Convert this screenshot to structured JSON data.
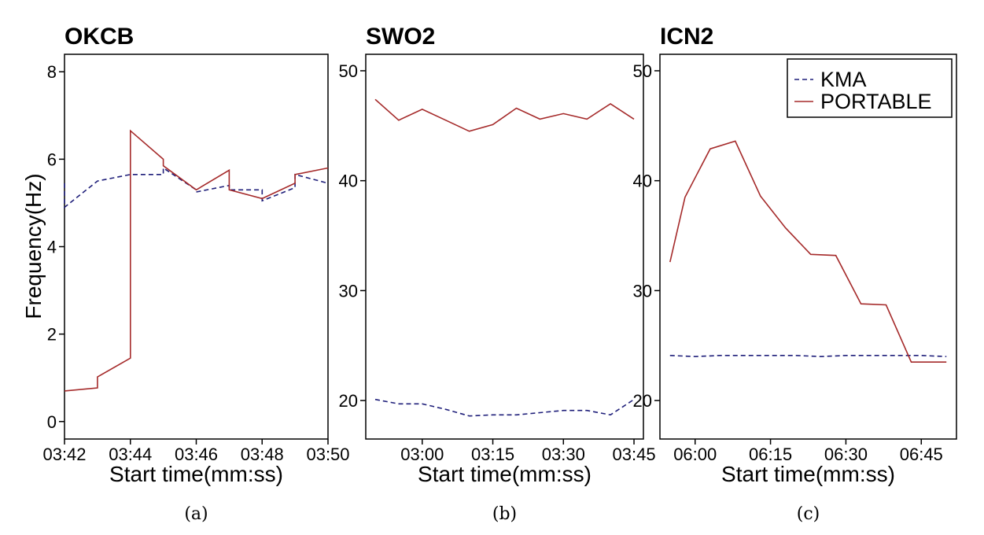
{
  "figure": {
    "ylabel": "Frequency(Hz)",
    "xlabel": "Start time(mm:ss)",
    "legend": {
      "kma": "KMA",
      "portable": "PORTABLE"
    },
    "colors": {
      "kma": "#1f1f7a",
      "portable": "#a52a2a",
      "axis": "#000000"
    }
  },
  "chart_data": [
    {
      "type": "line",
      "title": "OKCB",
      "caption": "(a)",
      "xlabel": "Start time(mm:ss)",
      "ylabel": "Frequency(Hz)",
      "xlim": [
        0,
        8
      ],
      "ylim": [
        -0.4,
        8.4
      ],
      "xticks": [
        0,
        2,
        4,
        6,
        8
      ],
      "xticklabels": [
        "03:42",
        "03:44",
        "03:46",
        "03:48",
        "03:50"
      ],
      "yticks": [
        0,
        2,
        4,
        6,
        8
      ],
      "yticklabels": [
        "0",
        "2",
        "4",
        "6",
        "8"
      ],
      "series": [
        {
          "name": "KMA",
          "style": "dashed",
          "x": [
            0,
            0,
            1,
            2,
            3,
            3,
            4,
            4,
            5,
            5,
            6,
            6,
            7,
            7,
            8
          ],
          "y": [
            5.45,
            4.9,
            5.5,
            5.65,
            5.65,
            5.8,
            5.3,
            5.25,
            5.4,
            5.3,
            5.3,
            5.05,
            5.35,
            5.65,
            5.45
          ]
        },
        {
          "name": "PORTABLE",
          "style": "solid",
          "x": [
            0,
            1,
            1,
            2,
            2,
            3,
            3,
            4,
            5,
            5,
            6,
            7,
            7,
            8
          ],
          "y": [
            0.7,
            0.77,
            1.02,
            1.45,
            6.65,
            6.0,
            5.85,
            5.3,
            5.75,
            5.3,
            5.1,
            5.45,
            5.65,
            5.8
          ]
        }
      ]
    },
    {
      "type": "line",
      "title": "SWO2",
      "caption": "(b)",
      "xlabel": "Start time(mm:ss)",
      "ylabel": "",
      "xlim": [
        -12,
        47
      ],
      "ylim": [
        16.5,
        51.5
      ],
      "xticks": [
        0,
        15,
        30,
        45
      ],
      "xticklabels": [
        "03:00",
        "03:15",
        "03:30",
        "03:45"
      ],
      "yticks": [
        20,
        30,
        40,
        50
      ],
      "yticklabels": [
        "20",
        "30",
        "40",
        "50"
      ],
      "series": [
        {
          "name": "KMA",
          "style": "dashed",
          "x": [
            -10,
            -5,
            0,
            5,
            10,
            15,
            20,
            25,
            30,
            35,
            40,
            45
          ],
          "y": [
            20.1,
            19.7,
            19.7,
            19.2,
            18.6,
            18.7,
            18.7,
            18.9,
            19.1,
            19.1,
            18.7,
            20.1
          ]
        },
        {
          "name": "PORTABLE",
          "style": "solid",
          "x": [
            -10,
            -5,
            0,
            5,
            10,
            15,
            20,
            25,
            30,
            35,
            40,
            45
          ],
          "y": [
            47.4,
            45.5,
            46.5,
            45.5,
            44.5,
            45.1,
            46.6,
            45.6,
            46.1,
            45.6,
            47.0,
            45.6
          ]
        }
      ]
    },
    {
      "type": "line",
      "title": "ICN2",
      "caption": "(c)",
      "xlabel": "Start time(mm:ss)",
      "ylabel": "",
      "legend": "top-right",
      "xlim": [
        -7,
        52
      ],
      "ylim": [
        16.5,
        51.5
      ],
      "xticks": [
        0,
        15,
        30,
        45
      ],
      "xticklabels": [
        "06:00",
        "06:15",
        "06:30",
        "06:45"
      ],
      "yticks": [
        20,
        30,
        40,
        50
      ],
      "yticklabels": [
        "20",
        "30",
        "40",
        "50"
      ],
      "series": [
        {
          "name": "KMA",
          "style": "dashed",
          "x": [
            -5,
            0,
            5,
            10,
            15,
            20,
            25,
            30,
            35,
            40,
            45,
            50
          ],
          "y": [
            24.1,
            24.0,
            24.1,
            24.1,
            24.1,
            24.1,
            24.0,
            24.1,
            24.1,
            24.1,
            24.1,
            24.0
          ]
        },
        {
          "name": "PORTABLE",
          "style": "solid",
          "x": [
            -5,
            -2,
            3,
            8,
            13,
            18,
            23,
            28,
            33,
            38,
            43,
            48,
            50
          ],
          "y": [
            32.6,
            38.5,
            42.9,
            43.6,
            38.6,
            35.7,
            33.3,
            33.2,
            28.8,
            28.7,
            23.5,
            23.5,
            23.5
          ]
        }
      ]
    }
  ]
}
